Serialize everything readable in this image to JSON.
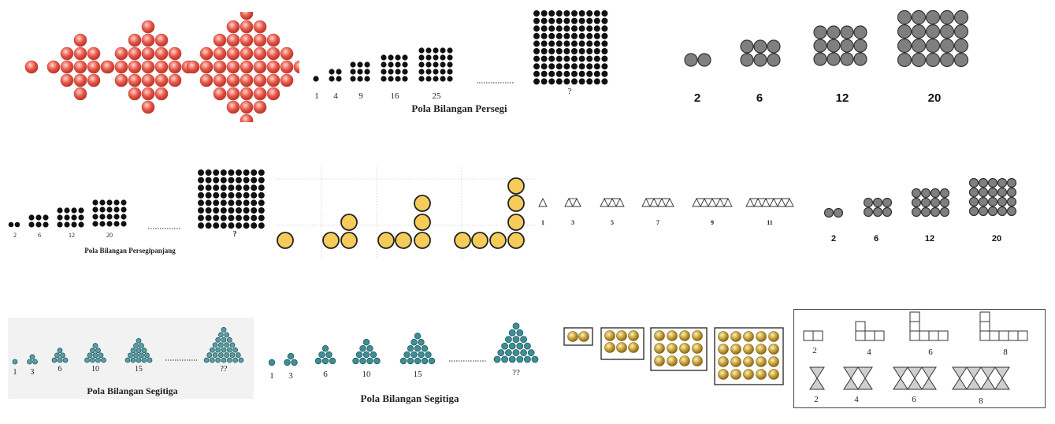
{
  "panel_square_caption": "Pola Bilangan Persegi",
  "panel_square_labels": [
    "1",
    "4",
    "9",
    "16",
    "25",
    "?"
  ],
  "panel_rect_labels_top": [
    "2",
    "6",
    "12",
    "20"
  ],
  "panel_rect_caption": "Pola Bilangan Persegipanjang",
  "panel_rect_labels": [
    "2",
    "6",
    "12",
    "20",
    "?"
  ],
  "panel_triangle_row_labels": [
    "1",
    "3",
    "5",
    "7",
    "9",
    "11"
  ],
  "panel_rect_labels_mid": [
    "2",
    "6",
    "12",
    "20"
  ],
  "panel_segitiga_caption": "Pola Bilangan Segitiga",
  "panel_segitiga_labels": [
    "1",
    "3",
    "6",
    "10",
    "15",
    "??"
  ],
  "panel_segitiga2_caption": "Pola Bilangan Segitiga",
  "panel_segitiga2_labels": [
    "1",
    "3",
    "6",
    "10",
    "15",
    "??"
  ],
  "panel_boxes_top_labels": [
    "2",
    "4",
    "6",
    "8"
  ],
  "panel_boxes_bottom_labels": [
    "2",
    "4",
    "6",
    "8"
  ],
  "colors": {
    "red_ball": "#e8584a",
    "black_dot": "#111111",
    "grey_ball": "#808080",
    "yellow_ball": "#f5cc5a",
    "teal_dot": "#3d8e95",
    "gold_ball": "#c9a43c"
  }
}
